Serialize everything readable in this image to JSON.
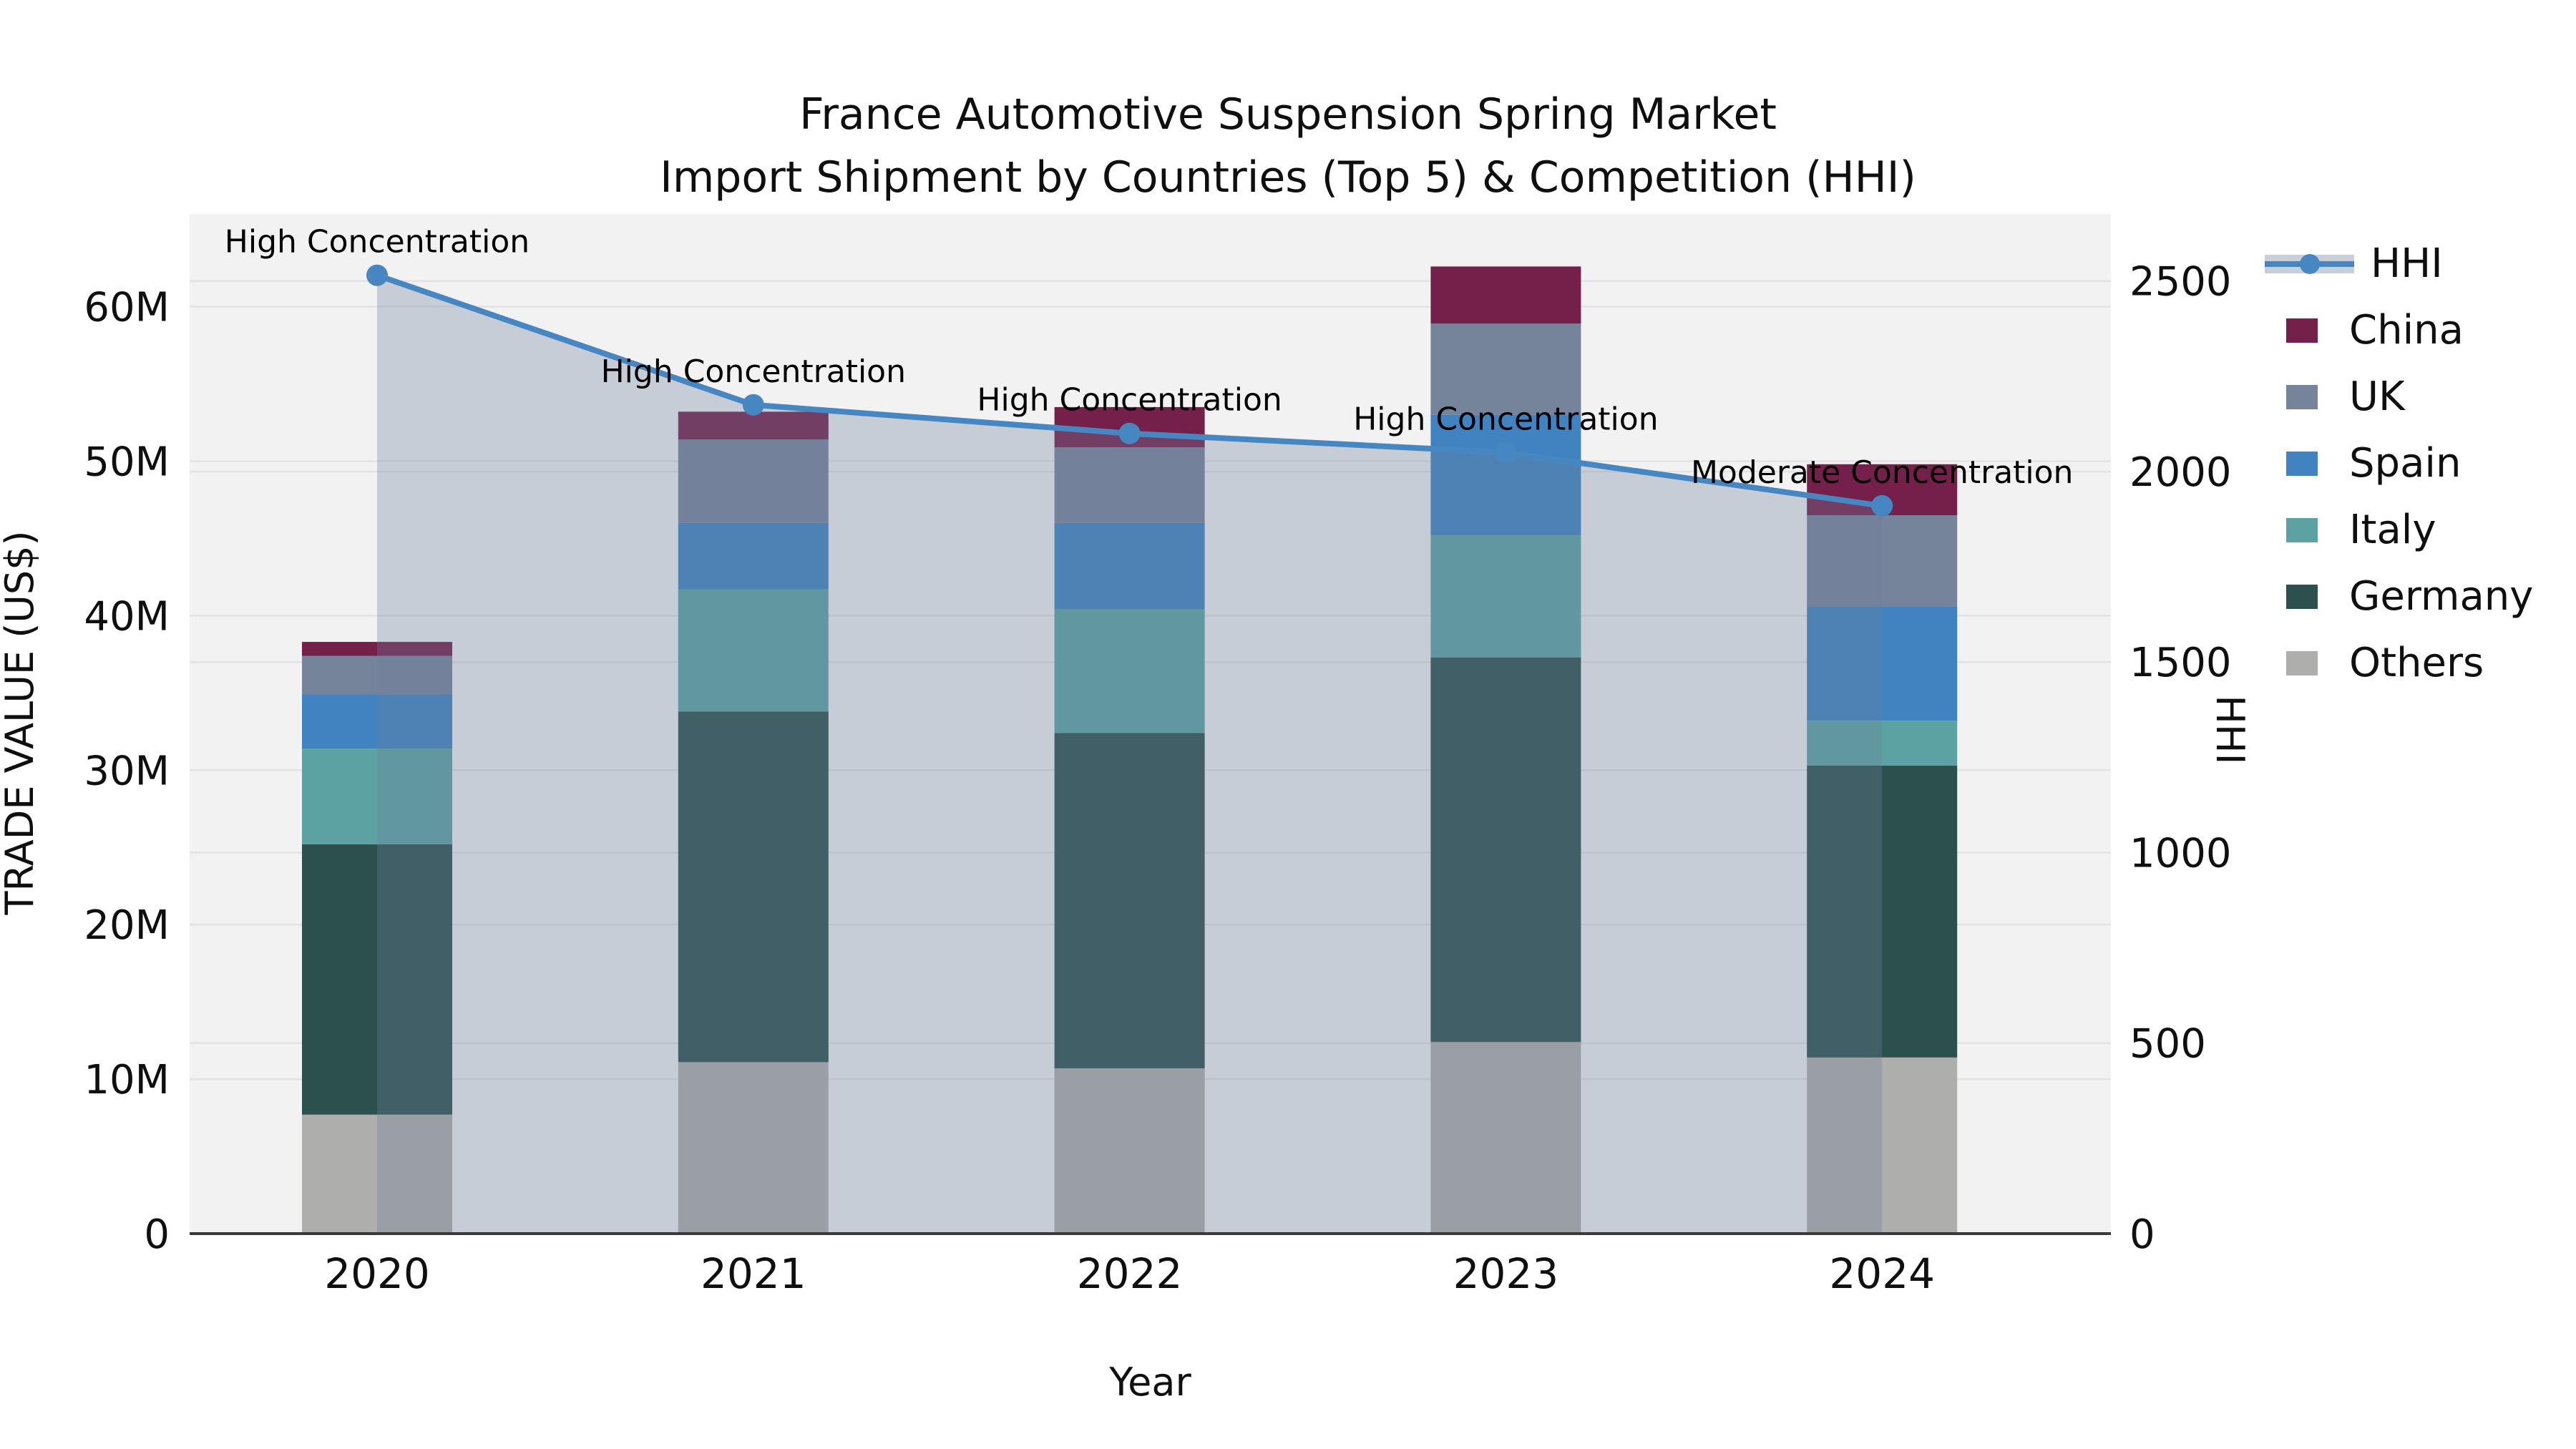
{
  "title": {
    "line1": "France Automotive Suspension Spring Market",
    "line2": "Import Shipment by Countries (Top 5) & Competition (HHI)"
  },
  "axes": {
    "x": {
      "label": "Year",
      "ticks": [
        "2020",
        "2021",
        "2022",
        "2023",
        "2024"
      ]
    },
    "y_left": {
      "label": "TRADE VALUE (US$)",
      "tick_labels": [
        "0",
        "10M",
        "20M",
        "30M",
        "40M",
        "50M",
        "60M"
      ],
      "tick_values": [
        0,
        10,
        20,
        30,
        40,
        50,
        60
      ],
      "axis_max": 66
    },
    "y_right": {
      "label": "HHI",
      "tick_labels": [
        "0",
        "500",
        "1000",
        "1500",
        "2000",
        "2500"
      ],
      "tick_values": [
        0,
        500,
        1000,
        1500,
        2000,
        2500
      ],
      "axis_max": 2676
    }
  },
  "legend": {
    "items": [
      {
        "label": "HHI",
        "type": "line",
        "color": "#4787C1",
        "band_color": "#C8CEDA"
      },
      {
        "label": "China",
        "type": "patch",
        "color": "#75204A"
      },
      {
        "label": "UK",
        "type": "patch",
        "color": "#76849B"
      },
      {
        "label": "Spain",
        "type": "patch",
        "color": "#4183C1"
      },
      {
        "label": "Italy",
        "type": "patch",
        "color": "#5CA2A3"
      },
      {
        "label": "Germany",
        "type": "patch",
        "color": "#2C504E"
      },
      {
        "label": "Others",
        "type": "patch",
        "color": "#AEAEAC"
      }
    ]
  },
  "chart_data": {
    "type": "bar",
    "subtype": "stacked bars with dual-axis line overlay and area fill under line",
    "categories": [
      "2020",
      "2021",
      "2022",
      "2023",
      "2024"
    ],
    "bar_unit": "trade value (million US$)",
    "series": [
      {
        "name": "Others",
        "color": "#AEAEAC",
        "values": [
          7.7,
          11.1,
          10.7,
          12.4,
          11.4
        ]
      },
      {
        "name": "Germany",
        "color": "#2C504E",
        "values": [
          17.5,
          22.7,
          21.7,
          24.9,
          18.9
        ]
      },
      {
        "name": "Italy",
        "color": "#5CA2A3",
        "values": [
          6.2,
          7.9,
          8.0,
          7.9,
          2.9
        ]
      },
      {
        "name": "Spain",
        "color": "#4183C1",
        "values": [
          3.5,
          4.3,
          5.6,
          7.8,
          7.4
        ]
      },
      {
        "name": "UK",
        "color": "#76849B",
        "values": [
          2.5,
          5.4,
          4.9,
          5.9,
          5.9
        ]
      },
      {
        "name": "China",
        "color": "#75204A",
        "values": [
          0.9,
          1.8,
          2.6,
          3.7,
          3.3
        ]
      }
    ],
    "stack_order_note": "series listed bottom-to-top; legend shows reverse order after HHI",
    "bar_totals_musd": [
      38.3,
      53.2,
      53.5,
      62.6,
      49.8
    ],
    "line_series": {
      "name": "HHI",
      "axis": "right",
      "color": "#4787C1",
      "area_fill": "rgba(110,128,152,0.32)",
      "values": [
        2515,
        2175,
        2100,
        2050,
        1910
      ]
    },
    "annotations": [
      {
        "category": "2020",
        "text": "High Concentration"
      },
      {
        "category": "2021",
        "text": "High Concentration"
      },
      {
        "category": "2022",
        "text": "High Concentration"
      },
      {
        "category": "2023",
        "text": "High Concentration"
      },
      {
        "category": "2024",
        "text": "Moderate Concentration"
      }
    ],
    "title": "France Automotive Suspension Spring Market — Import Shipment by Countries (Top 5) & Competition (HHI)",
    "xlabel": "Year",
    "ylabel_left": "TRADE VALUE (US$)",
    "ylabel_right": "HHI",
    "ylim_left": [
      0,
      66000000
    ],
    "ylim_right": [
      0,
      2676
    ],
    "grid": "horizontal gridlines at ticks of both y-axes",
    "plot_background": "#F2F2F3",
    "gridline_color": "#E3E3E6"
  }
}
